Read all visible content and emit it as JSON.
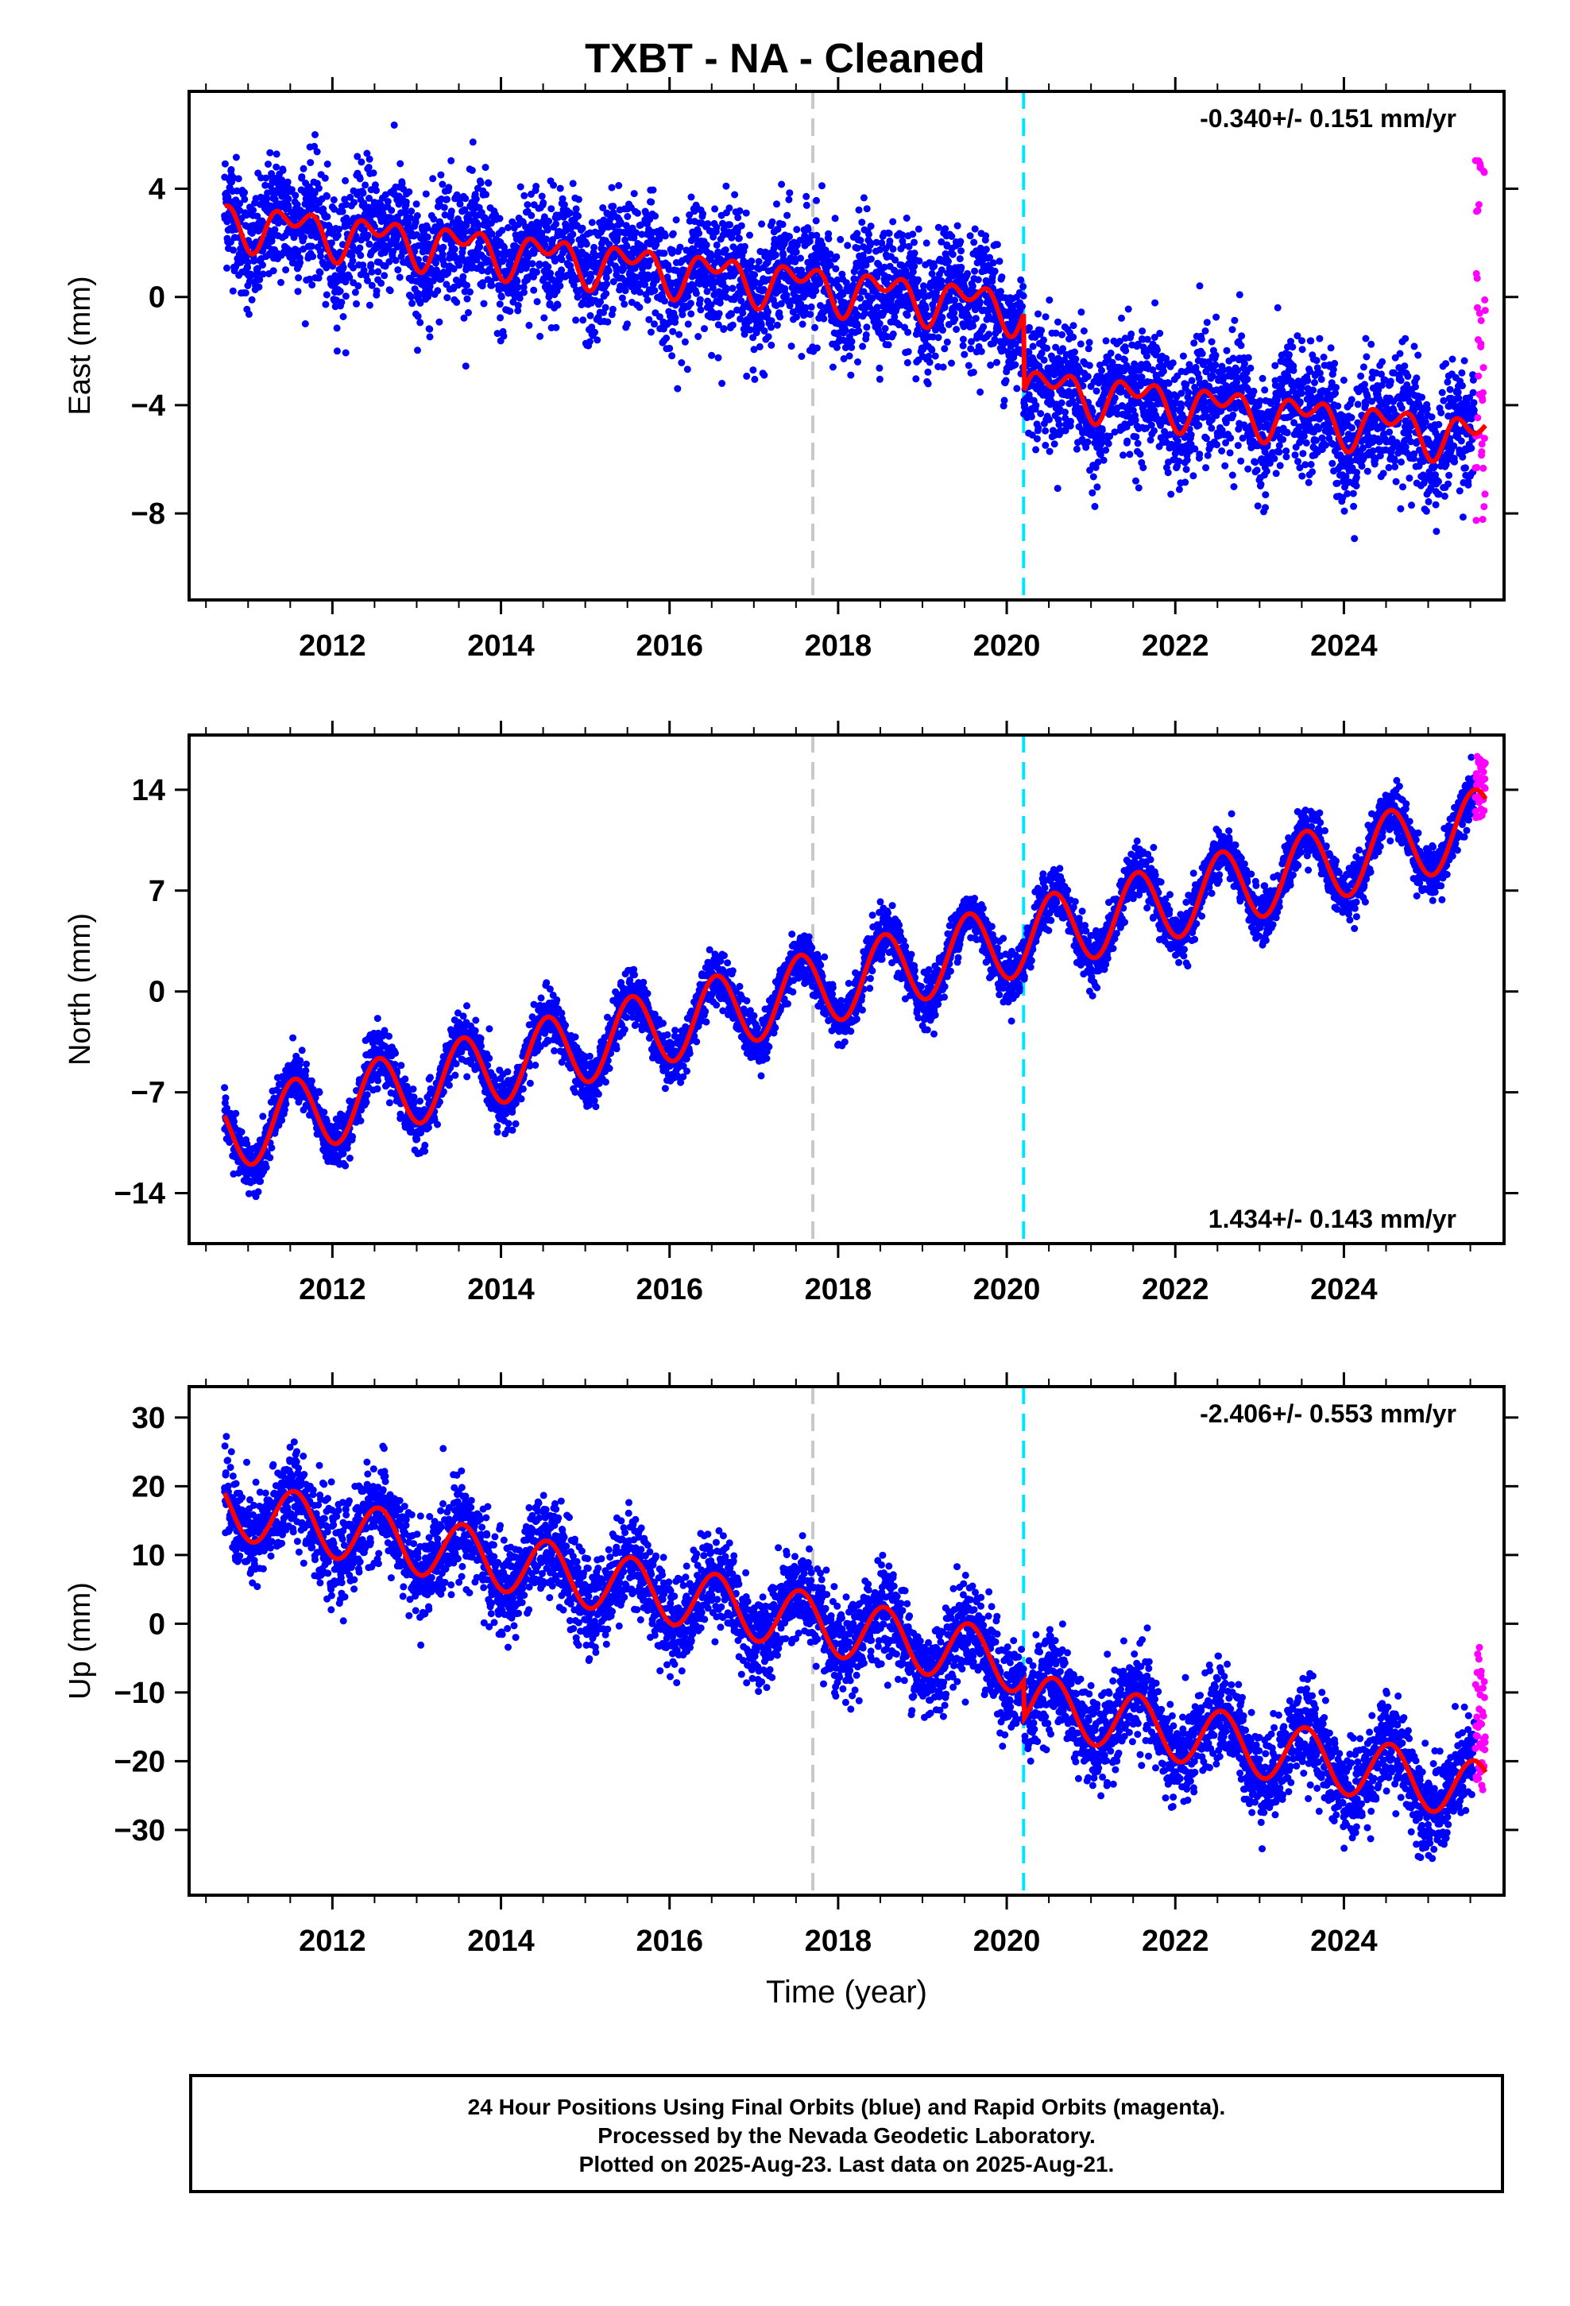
{
  "title": "TXBT  - NA - Cleaned",
  "footer": {
    "line1": "24 Hour Positions Using Final Orbits (blue) and Rapid Orbits (magenta).",
    "line2": "Processed by the Nevada Geodetic Laboratory.",
    "line3": "Plotted on 2025-Aug-23. Last data on 2025-Aug-21."
  },
  "colors": {
    "final": "#0000ff",
    "rapid": "#ff00ff",
    "model": "#ff0000",
    "event_gray": "#c8c8c8",
    "event_cyan": "#00e5ff"
  },
  "chart_data": [
    {
      "type": "scatter",
      "id": "east",
      "ylabel": "East (mm)",
      "rate_label": "-0.340+/- 0.151 mm/yr",
      "rate_position": "top-right",
      "xlim": [
        2010.3,
        2025.9
      ],
      "ylim": [
        -11.2,
        7.6
      ],
      "xticks": [
        2012,
        2014,
        2016,
        2018,
        2020,
        2022,
        2024
      ],
      "yticks": [
        4,
        0,
        -4,
        -8
      ],
      "event_lines": [
        2017.7,
        2020.2
      ],
      "model": {
        "offset": 2.8,
        "rate": -0.34,
        "annual_amp": 0.6,
        "semiannual_amp": 0.5,
        "step_at": 2020.2,
        "step": -2.9
      },
      "scatter": "dense daily positions around the model, noise about +/-1.4 mm; rapid-orbit points at the end between -8.4 and 5.4 mm"
    },
    {
      "type": "scatter",
      "id": "north",
      "ylabel": "North (mm)",
      "rate_label": "1.434+/- 0.143 mm/yr",
      "rate_position": "bottom-right",
      "xlim": [
        2010.3,
        2025.9
      ],
      "ylim": [
        -17.5,
        17.8
      ],
      "xticks": [
        2012,
        2014,
        2016,
        2018,
        2020,
        2022,
        2024
      ],
      "yticks": [
        14,
        7,
        0,
        -7,
        -14
      ],
      "event_lines": [
        2017.7,
        2020.2
      ],
      "model": {
        "offset": -9.9,
        "rate": 1.434,
        "annual_amp": 2.6,
        "semiannual_amp": 0,
        "step_at": 2020.2,
        "step": 0
      },
      "scatter": "dense daily positions around the model, noise about +/-1.1 mm; rapid-orbit points at the end between 12 and 16.5 mm"
    },
    {
      "type": "scatter",
      "id": "up",
      "ylabel": "Up (mm)",
      "rate_label": "-2.406+/- 0.553 mm/yr",
      "rate_position": "top-right",
      "xlim": [
        2010.3,
        2025.9
      ],
      "ylim": [
        -39.5,
        34.5
      ],
      "xticks": [
        2012,
        2014,
        2016,
        2018,
        2020,
        2022,
        2024
      ],
      "yticks": [
        30,
        20,
        10,
        0,
        -10,
        -20,
        -30
      ],
      "xlabel": "Time (year)",
      "event_lines": [
        2017.7,
        2020.2
      ],
      "model": {
        "offset": 17.0,
        "rate": -2.406,
        "annual_amp": 4.3,
        "semiannual_amp": 0,
        "step_at": 2020.2,
        "step": -5.5
      },
      "scatter": "dense daily positions around the model, noise about +/-4 mm; rapid-orbit points at the end between -25 and -3 mm"
    }
  ]
}
